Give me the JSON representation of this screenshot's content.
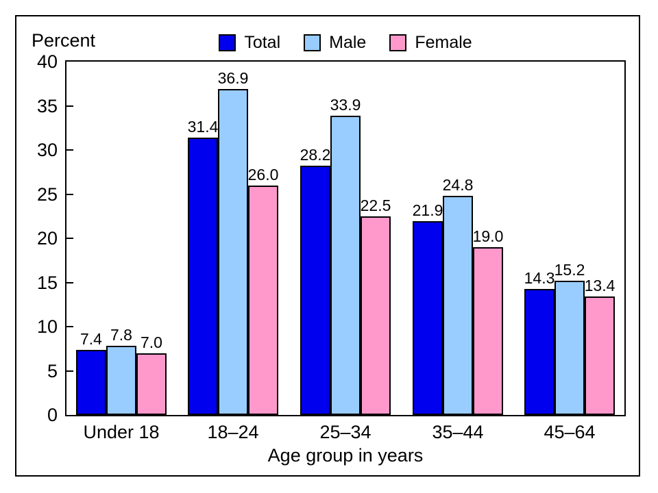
{
  "chart_data": {
    "type": "bar",
    "ylabel": "Percent",
    "xlabel": "Age group in years",
    "ylim": [
      0,
      40
    ],
    "yticks": [
      0,
      5,
      10,
      15,
      20,
      25,
      30,
      35,
      40
    ],
    "categories": [
      "Under 18",
      "18–24",
      "25–34",
      "35–44",
      "45–64"
    ],
    "series": [
      {
        "name": "Total",
        "color": "#0000ee",
        "values": [
          7.4,
          31.4,
          28.2,
          21.9,
          14.3
        ]
      },
      {
        "name": "Male",
        "color": "#99ccff",
        "values": [
          7.8,
          36.9,
          33.9,
          24.8,
          15.2
        ]
      },
      {
        "name": "Female",
        "color": "#ff99cc",
        "values": [
          7.0,
          26.0,
          22.5,
          19.0,
          13.4
        ]
      }
    ],
    "legend_position": "top-center",
    "grid": false,
    "value_labels": true,
    "value_label_decimals": 1,
    "bar_outline_color": "#000000",
    "frame_color": "#000000"
  }
}
